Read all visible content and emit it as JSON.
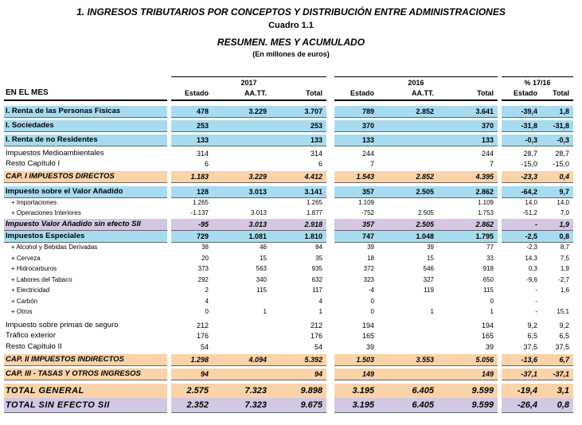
{
  "header": {
    "title": "1. INGRESOS TRIBUTARIOS POR CONCEPTOS Y DISTRIBUCIÓN ENTRE ADMINISTRACIONES",
    "subtitle": "Cuadro 1.1",
    "heading": "RESUMEN. MES Y ACUMULADO",
    "unit": "(En millones de euros)"
  },
  "table": {
    "groups": [
      "2017",
      "2016",
      "% 17/16"
    ],
    "columns": [
      "EN EL MES",
      "Estado",
      "AA.TT.",
      "Total",
      "Estado",
      "AA.TT.",
      "Total",
      "Estado",
      "Total"
    ],
    "rows": [
      [
        "I. Renta de las Personas Físicas",
        "478",
        "3.229",
        "3.707",
        "789",
        "2.852",
        "3.641",
        "-39,4",
        "1,8"
      ],
      [
        "I. Sociedades",
        "253",
        null,
        "253",
        "370",
        null,
        "370",
        "-31,8",
        "-31,8"
      ],
      [
        "I. Renta de no Residentes",
        "133",
        null,
        "133",
        "133",
        null,
        "133",
        "-0,3",
        "-0,3"
      ],
      [
        "Impuestos Medioambientales",
        "314",
        null,
        "314",
        "244",
        null,
        "244",
        "28,7",
        "28,7"
      ],
      [
        "Resto Capítulo I",
        "6",
        null,
        "6",
        "7",
        null,
        "7",
        "-15,0",
        "-15,0"
      ],
      [
        "CAP. I IMPUESTOS DIRECTOS",
        "1.183",
        "3.229",
        "4.412",
        "1.543",
        "2.852",
        "4.395",
        "-23,3",
        "0,4"
      ],
      [
        "Impuesto sobre el Valor Añadido",
        "128",
        "3.013",
        "3.141",
        "357",
        "2.505",
        "2.862",
        "-64,2",
        "9,7"
      ],
      [
        "+ Importaciones",
        "1.265",
        null,
        "1.265",
        "1.109",
        null,
        "1.109",
        "14,0",
        "14,0"
      ],
      [
        "+ Operaciones Interiores",
        "-1.137",
        "3.013",
        "1.877",
        "-752",
        "2.505",
        "1.753",
        "-51,2",
        "7,0"
      ],
      [
        "Impuesto Valor Añadido sin efecto SII",
        "-95",
        "3.013",
        "2.918",
        "357",
        "2.505",
        "2.862",
        "-",
        "1,9"
      ],
      [
        "Impuestos Especiales",
        "729",
        "1.081",
        "1.810",
        "747",
        "1.048",
        "1.795",
        "-2,5",
        "0,8"
      ],
      [
        "+ Alcohol y Bebidas Derivadas",
        "38",
        "46",
        "84",
        "39",
        "39",
        "77",
        "-2,3",
        "8,7"
      ],
      [
        "+ Cerveza",
        "20",
        "15",
        "35",
        "18",
        "15",
        "33",
        "14,3",
        "7,5"
      ],
      [
        "+ Hidrocarburos",
        "373",
        "563",
        "935",
        "372",
        "546",
        "918",
        "0,3",
        "1,9"
      ],
      [
        "+ Labores del Tabaco",
        "292",
        "340",
        "632",
        "323",
        "327",
        "650",
        "-9,6",
        "-2,7"
      ],
      [
        "+ Electricidad",
        "2",
        "115",
        "117",
        "-4",
        "119",
        "115",
        "-",
        "1,6"
      ],
      [
        "+ Carbón",
        "4",
        null,
        "4",
        "0",
        null,
        "0",
        "-",
        null
      ],
      [
        "+ Otros",
        "0",
        "1",
        "1",
        "0",
        "1",
        "1",
        "-",
        "15,1"
      ],
      [
        "Impuesto sobre primas de seguro",
        "212",
        null,
        "212",
        "194",
        null,
        "194",
        "9,2",
        "9,2"
      ],
      [
        "Tráfico exterior",
        "176",
        null,
        "176",
        "165",
        null,
        "165",
        "6,5",
        "6,5"
      ],
      [
        "Resto Capítulo II",
        "54",
        null,
        "54",
        "39",
        null,
        "39",
        "37,5",
        "37,5"
      ],
      [
        "CAP. II IMPUESTOS INDIRECTOS",
        "1.298",
        "4.094",
        "5.392",
        "1.503",
        "3.553",
        "5.056",
        "-13,6",
        "6,7"
      ],
      [
        "CAP. III - TASAS Y OTROS INGRESOS",
        "94",
        null,
        "94",
        "149",
        null,
        "149",
        "-37,1",
        "-37,1"
      ],
      [
        "TOTAL GENERAL",
        "2.575",
        "7.323",
        "9.898",
        "3.195",
        "6.405",
        "9.599",
        "-19,4",
        "3,1"
      ],
      [
        "TOTAL SIN EFECTO SII",
        "2.352",
        "7.323",
        "9.675",
        "3.195",
        "6.405",
        "9.599",
        "-26,4",
        "0,8"
      ]
    ]
  }
}
